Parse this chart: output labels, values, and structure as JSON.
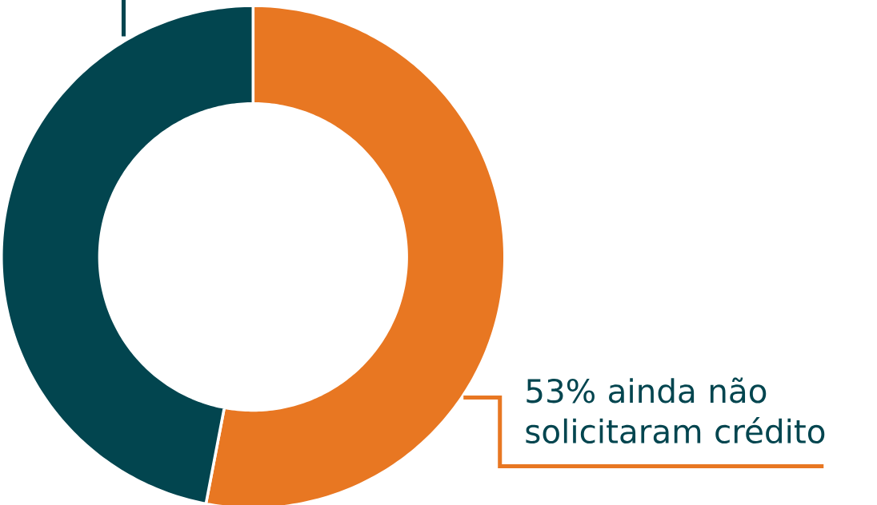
{
  "chart_data": {
    "type": "donut",
    "categories": [
      "53% ainda não solicitaram crédito",
      null
    ],
    "values": [
      53,
      47
    ],
    "colors": [
      "#e87722",
      "#02454f"
    ]
  }
}
